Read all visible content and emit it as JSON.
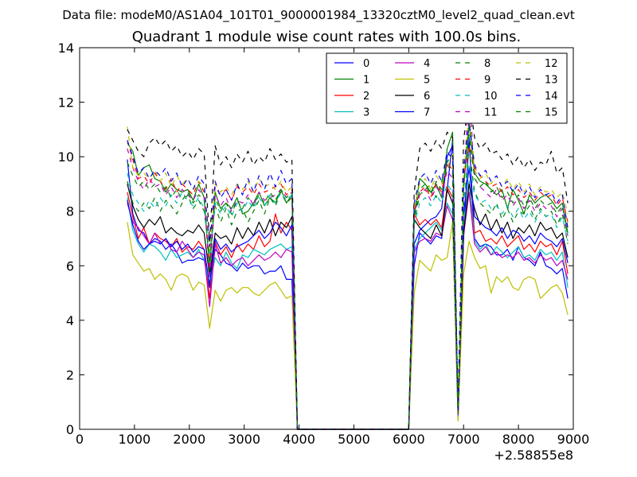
{
  "figure": {
    "suptitle": "Data file: modeM0/AS1A04_101T01_9000001984_13320cztM0_level2_quad_clean.evt"
  },
  "chart_data": {
    "type": "line",
    "title": "Quadrant 1 module wise count rates with 100.0s bins.",
    "xlabel": "",
    "ylabel": "",
    "x_offset_label": "+2.58855e8",
    "xlim": [
      0,
      9000
    ],
    "ylim": [
      0,
      14
    ],
    "x_ticks": [
      "0",
      "1000",
      "2000",
      "3000",
      "4000",
      "5000",
      "6000",
      "7000",
      "8000",
      "9000"
    ],
    "y_ticks": [
      "0",
      "2",
      "4",
      "6",
      "8",
      "10",
      "12",
      "14"
    ],
    "grid": false,
    "legend_position": "top-right",
    "legend_columns": 4,
    "x": [
      870,
      970,
      1070,
      1170,
      1270,
      1370,
      1470,
      1570,
      1670,
      1770,
      1870,
      1970,
      2070,
      2170,
      2270,
      2370,
      2470,
      2570,
      2670,
      2770,
      2870,
      2970,
      3070,
      3170,
      3270,
      3370,
      3470,
      3570,
      3670,
      3770,
      3870,
      3970,
      6000,
      6100,
      6200,
      6300,
      6400,
      6500,
      6600,
      6700,
      6800,
      6900,
      7000,
      7100,
      7200,
      7300,
      7400,
      7500,
      7600,
      7700,
      7800,
      7900,
      8000,
      8100,
      8200,
      8300,
      8400,
      8500,
      8600,
      8700,
      8800,
      8900
    ],
    "series": [
      {
        "name": "0",
        "color": "#0000ff",
        "dash": "solid",
        "values": [
          9.9,
          7.9,
          7.3,
          7.2,
          6.8,
          7.0,
          6.9,
          6.6,
          6.8,
          6.5,
          6.1,
          6.2,
          6.2,
          6.3,
          6.2,
          5.2,
          6.6,
          6.4,
          6.1,
          6.0,
          5.8,
          6.1,
          5.9,
          6.0,
          6.0,
          5.7,
          5.8,
          5.8,
          6.0,
          5.5,
          5.5,
          0.0,
          0.0,
          6.0,
          7.2,
          7.0,
          6.8,
          7.1,
          7.0,
          8.8,
          10.6,
          0.5,
          7.0,
          10.7,
          7.0,
          6.7,
          6.8,
          6.7,
          6.4,
          6.4,
          6.6,
          6.2,
          6.7,
          6.3,
          6.2,
          6.0,
          6.5,
          6.0,
          5.9,
          5.7,
          5.9,
          4.8
        ]
      },
      {
        "name": "1",
        "color": "#008000",
        "dash": "solid",
        "values": [
          10.5,
          10.2,
          9.3,
          9.6,
          9.7,
          9.2,
          9.1,
          8.7,
          9.0,
          8.8,
          8.7,
          8.8,
          8.4,
          9.0,
          8.5,
          5.8,
          8.7,
          8.1,
          8.3,
          8.1,
          8.5,
          7.9,
          8.0,
          8.3,
          8.7,
          8.2,
          8.5,
          8.3,
          8.8,
          8.3,
          8.6,
          0.0,
          0.0,
          7.8,
          9.2,
          9.0,
          8.7,
          9.0,
          8.5,
          10.3,
          10.9,
          0.4,
          8.8,
          11.2,
          9.4,
          9.1,
          9.0,
          8.8,
          8.6,
          8.8,
          8.1,
          8.8,
          8.4,
          7.9,
          8.6,
          8.3,
          8.5,
          8.6,
          8.4,
          8.1,
          8.3,
          7.2
        ]
      },
      {
        "name": "2",
        "color": "#ff0000",
        "dash": "solid",
        "values": [
          8.7,
          7.8,
          7.0,
          7.4,
          6.8,
          7.2,
          7.0,
          6.9,
          6.7,
          7.0,
          6.5,
          6.7,
          6.6,
          6.9,
          6.6,
          4.8,
          6.9,
          6.4,
          6.7,
          6.3,
          6.8,
          6.5,
          6.8,
          6.6,
          7.1,
          6.7,
          6.9,
          7.9,
          7.2,
          7.6,
          7.3,
          0.0,
          0.0,
          7.9,
          7.5,
          7.7,
          7.5,
          7.7,
          7.4,
          8.9,
          8.5,
          0.6,
          7.3,
          9.1,
          7.2,
          7.3,
          6.9,
          7.0,
          6.8,
          7.1,
          6.7,
          6.9,
          7.1,
          6.6,
          6.8,
          6.5,
          6.9,
          6.7,
          6.8,
          6.4,
          6.9,
          5.7
        ]
      },
      {
        "name": "3",
        "color": "#00bfbf",
        "dash": "solid",
        "values": [
          8.5,
          7.3,
          6.8,
          6.5,
          6.8,
          6.7,
          6.5,
          6.2,
          6.6,
          6.3,
          6.4,
          6.5,
          6.3,
          6.6,
          6.2,
          5.3,
          6.3,
          6.0,
          6.5,
          6.1,
          5.9,
          6.4,
          6.3,
          6.6,
          6.5,
          6.4,
          6.6,
          6.7,
          6.8,
          6.6,
          6.7,
          0.0,
          0.0,
          6.6,
          7.0,
          7.2,
          7.4,
          7.6,
          7.3,
          8.3,
          7.9,
          0.4,
          7.4,
          9.1,
          6.9,
          6.6,
          6.8,
          6.4,
          6.7,
          6.5,
          6.3,
          6.5,
          6.7,
          6.3,
          6.4,
          6.2,
          6.6,
          6.4,
          6.5,
          6.2,
          6.5,
          5.2
        ]
      },
      {
        "name": "4",
        "color": "#bf00bf",
        "dash": "solid",
        "values": [
          8.3,
          7.6,
          7.4,
          7.1,
          6.8,
          7.2,
          6.8,
          7.0,
          6.6,
          6.5,
          6.9,
          6.6,
          6.3,
          6.5,
          6.4,
          4.5,
          6.8,
          6.1,
          6.3,
          6.0,
          6.2,
          6.3,
          6.0,
          6.2,
          6.4,
          6.2,
          6.3,
          6.5,
          6.3,
          6.6,
          6.5,
          0.0,
          0.0,
          6.5,
          6.9,
          7.0,
          6.9,
          7.2,
          7.1,
          8.2,
          7.7,
          0.4,
          7.1,
          8.7,
          6.8,
          6.5,
          6.7,
          6.4,
          6.5,
          6.3,
          6.4,
          6.3,
          6.5,
          6.2,
          6.3,
          6.1,
          6.4,
          6.2,
          6.3,
          6.0,
          6.2,
          5.5
        ]
      },
      {
        "name": "5",
        "color": "#bfbf00",
        "dash": "solid",
        "values": [
          7.6,
          6.4,
          6.1,
          5.8,
          5.9,
          5.5,
          5.7,
          5.5,
          5.1,
          5.6,
          5.7,
          5.6,
          5.1,
          5.4,
          5.3,
          3.7,
          5.1,
          4.7,
          5.1,
          5.2,
          5.0,
          5.2,
          5.2,
          5.0,
          4.9,
          5.1,
          5.3,
          5.4,
          5.1,
          4.8,
          4.9,
          0.0,
          0.0,
          5.0,
          6.2,
          6.0,
          5.8,
          6.4,
          6.2,
          6.3,
          7.6,
          0.3,
          5.7,
          6.9,
          6.3,
          5.9,
          6.0,
          5.0,
          5.6,
          5.4,
          5.6,
          5.2,
          5.1,
          5.5,
          5.6,
          5.5,
          4.8,
          5.0,
          5.2,
          5.3,
          5.0,
          4.2
        ]
      },
      {
        "name": "6",
        "color": "#000000",
        "dash": "solid",
        "values": [
          9.0,
          8.2,
          7.7,
          7.4,
          7.7,
          7.5,
          7.8,
          7.2,
          7.4,
          7.2,
          7.1,
          7.3,
          7.2,
          7.5,
          7.2,
          5.6,
          7.2,
          7.0,
          7.1,
          6.8,
          7.4,
          7.0,
          7.4,
          7.1,
          7.6,
          7.2,
          7.7,
          7.1,
          7.6,
          7.4,
          7.8,
          0.0,
          0.0,
          7.7,
          7.4,
          7.2,
          7.0,
          7.5,
          7.1,
          8.8,
          8.3,
          0.5,
          7.2,
          9.0,
          8.1,
          7.5,
          7.9,
          7.3,
          7.7,
          7.2,
          7.6,
          7.0,
          7.4,
          7.2,
          7.5,
          7.1,
          7.6,
          7.3,
          7.4,
          7.0,
          7.2,
          6.3
        ]
      },
      {
        "name": "7",
        "color": "#0000ff",
        "dash": "solid",
        "values": [
          8.4,
          7.5,
          6.9,
          6.6,
          6.8,
          6.9,
          6.8,
          7.0,
          6.7,
          6.9,
          6.6,
          6.8,
          6.5,
          6.7,
          6.6,
          5.3,
          7.0,
          6.6,
          6.8,
          6.5,
          6.7,
          6.8,
          6.9,
          7.1,
          7.3,
          7.0,
          7.2,
          7.6,
          7.4,
          7.1,
          7.5,
          0.0,
          0.0,
          6.8,
          7.3,
          7.5,
          7.7,
          7.8,
          8.1,
          10.0,
          10.4,
          0.7,
          7.9,
          9.6,
          7.8,
          7.6,
          7.4,
          7.3,
          7.1,
          7.4,
          7.0,
          7.3,
          7.2,
          6.9,
          7.1,
          6.8,
          7.2,
          7.0,
          6.9,
          6.7,
          7.0,
          6.1
        ]
      },
      {
        "name": "8",
        "color": "#008000",
        "dash": "dashed",
        "values": [
          9.1,
          8.3,
          8.0,
          8.3,
          8.1,
          8.5,
          8.0,
          8.4,
          8.2,
          7.9,
          8.3,
          8.6,
          8.1,
          8.4,
          8.0,
          6.4,
          8.2,
          7.6,
          8.1,
          7.5,
          8.0,
          8.1,
          7.6,
          8.0,
          8.4,
          7.9,
          8.5,
          8.2,
          8.7,
          8.3,
          8.5,
          0.0,
          0.0,
          7.6,
          8.6,
          8.8,
          9.0,
          8.5,
          9.1,
          9.8,
          10.1,
          0.6,
          8.2,
          10.3,
          8.7,
          8.3,
          8.1,
          7.9,
          8.3,
          7.7,
          8.1,
          7.6,
          8.0,
          7.9,
          8.2,
          7.7,
          8.1,
          7.8,
          8.0,
          7.5,
          7.9,
          6.8
        ]
      },
      {
        "name": "9",
        "color": "#ff0000",
        "dash": "dashed",
        "values": [
          10.6,
          9.9,
          9.2,
          9.3,
          9.0,
          9.4,
          9.1,
          8.8,
          9.2,
          8.7,
          9.0,
          8.8,
          8.6,
          9.1,
          8.7,
          6.0,
          8.9,
          8.6,
          8.8,
          8.4,
          8.9,
          8.7,
          8.9,
          8.6,
          9.0,
          8.7,
          8.8,
          8.9,
          9.0,
          8.6,
          8.8,
          0.0,
          0.0,
          8.0,
          8.7,
          8.9,
          8.5,
          9.0,
          8.7,
          9.8,
          9.5,
          0.5,
          9.2,
          10.4,
          9.6,
          9.3,
          9.1,
          8.9,
          9.0,
          8.7,
          8.9,
          8.6,
          8.8,
          8.5,
          8.7,
          8.4,
          8.7,
          8.5,
          8.6,
          8.2,
          8.5,
          7.6
        ]
      },
      {
        "name": "10",
        "color": "#00bfbf",
        "dash": "dashed",
        "values": [
          9.4,
          8.6,
          8.3,
          8.0,
          8.4,
          8.1,
          8.5,
          8.2,
          8.6,
          8.3,
          8.7,
          8.4,
          8.2,
          8.5,
          8.1,
          6.2,
          8.3,
          7.9,
          8.2,
          7.8,
          8.3,
          8.0,
          8.4,
          8.1,
          8.5,
          8.2,
          8.6,
          8.3,
          8.7,
          8.4,
          8.6,
          0.0,
          0.0,
          7.5,
          8.3,
          8.5,
          8.2,
          8.6,
          8.3,
          9.0,
          8.7,
          0.5,
          8.4,
          9.7,
          8.6,
          8.3,
          8.4,
          8.1,
          8.2,
          7.9,
          8.2,
          7.8,
          8.1,
          7.7,
          8.0,
          7.6,
          8.0,
          7.8,
          7.9,
          7.4,
          7.8,
          6.9
        ]
      },
      {
        "name": "11",
        "color": "#bf00bf",
        "dash": "dashed",
        "values": [
          10.3,
          9.6,
          9.1,
          8.8,
          9.2,
          8.9,
          9.0,
          8.6,
          8.9,
          8.5,
          8.8,
          8.6,
          8.4,
          8.8,
          8.5,
          5.5,
          8.6,
          8.2,
          8.5,
          8.0,
          8.4,
          8.3,
          8.6,
          8.2,
          8.7,
          8.4,
          8.5,
          8.6,
          8.8,
          8.5,
          8.7,
          0.0,
          0.0,
          7.9,
          8.6,
          8.8,
          8.4,
          8.9,
          8.6,
          9.5,
          9.2,
          0.5,
          8.9,
          12.6,
          9.2,
          8.9,
          8.7,
          8.5,
          8.8,
          8.4,
          8.6,
          8.2,
          8.5,
          8.1,
          8.4,
          8.0,
          8.3,
          8.1,
          8.2,
          7.8,
          8.1,
          7.1
        ]
      },
      {
        "name": "12",
        "color": "#bfbf00",
        "dash": "dashed",
        "values": [
          11.1,
          9.6,
          9.3,
          9.4,
          9.2,
          9.5,
          9.1,
          9.4,
          8.9,
          9.3,
          9.0,
          9.2,
          8.8,
          9.1,
          8.9,
          6.3,
          9.0,
          8.7,
          8.9,
          8.6,
          9.0,
          8.8,
          9.1,
          8.7,
          9.2,
          8.9,
          9.0,
          8.8,
          9.1,
          8.7,
          8.9,
          0.0,
          0.0,
          8.1,
          9.0,
          9.2,
          8.8,
          9.3,
          9.0,
          9.6,
          10.1,
          0.6,
          9.3,
          11.6,
          9.5,
          9.2,
          9.4,
          9.0,
          9.3,
          8.9,
          9.2,
          8.8,
          9.1,
          8.7,
          9.0,
          8.6,
          8.9,
          8.7,
          8.8,
          8.5,
          8.7,
          7.9
        ]
      },
      {
        "name": "13",
        "color": "#000000",
        "dash": "dashed",
        "values": [
          11.0,
          10.6,
          10.2,
          10.0,
          10.5,
          10.7,
          10.4,
          10.6,
          10.2,
          10.4,
          10.0,
          10.2,
          9.9,
          10.3,
          10.1,
          6.9,
          10.4,
          9.7,
          10.0,
          9.6,
          10.1,
          9.8,
          10.2,
          9.7,
          10.0,
          9.8,
          10.3,
          9.9,
          10.1,
          9.8,
          9.9,
          0.0,
          0.0,
          8.7,
          10.3,
          10.5,
          10.2,
          10.6,
          10.3,
          10.9,
          10.7,
          0.8,
          10.6,
          12.2,
          10.7,
          10.3,
          10.5,
          10.1,
          10.2,
          9.9,
          10.1,
          9.7,
          10.0,
          9.6,
          9.9,
          9.5,
          9.8,
          9.7,
          10.2,
          9.4,
          9.6,
          8.3
        ]
      },
      {
        "name": "14",
        "color": "#0000ff",
        "dash": "dashed",
        "values": [
          10.6,
          10.0,
          9.4,
          9.6,
          9.2,
          9.5,
          9.3,
          9.6,
          9.1,
          9.4,
          8.9,
          9.2,
          8.8,
          9.3,
          9.0,
          6.7,
          9.1,
          8.5,
          8.8,
          8.4,
          9.0,
          8.6,
          9.2,
          8.7,
          9.3,
          8.8,
          9.4,
          8.9,
          9.5,
          9.0,
          9.2,
          0.0,
          0.0,
          8.3,
          9.2,
          9.4,
          9.0,
          9.5,
          9.1,
          10.2,
          9.9,
          0.7,
          9.5,
          11.3,
          9.7,
          9.3,
          9.5,
          9.1,
          9.3,
          8.9,
          9.1,
          8.7,
          9.0,
          8.6,
          8.9,
          8.5,
          8.8,
          8.6,
          8.7,
          8.3,
          8.6,
          7.4
        ]
      },
      {
        "name": "15",
        "color": "#008000",
        "dash": "dashed",
        "values": [
          9.8,
          9.3,
          8.9,
          9.1,
          8.8,
          9.0,
          8.7,
          8.9,
          8.5,
          8.8,
          8.4,
          8.7,
          8.3,
          8.6,
          8.4,
          6.1,
          8.5,
          8.0,
          8.3,
          7.9,
          8.4,
          8.1,
          8.5,
          8.2,
          8.6,
          8.3,
          8.7,
          8.4,
          8.8,
          8.5,
          8.7,
          0.0,
          0.0,
          7.8,
          8.8,
          9.0,
          8.6,
          9.1,
          8.8,
          9.7,
          9.4,
          0.6,
          9.0,
          10.8,
          9.2,
          8.9,
          9.1,
          8.7,
          8.9,
          8.5,
          8.7,
          8.3,
          8.6,
          8.2,
          8.5,
          8.1,
          8.4,
          8.2,
          8.3,
          7.9,
          8.2,
          7.1
        ]
      }
    ]
  }
}
